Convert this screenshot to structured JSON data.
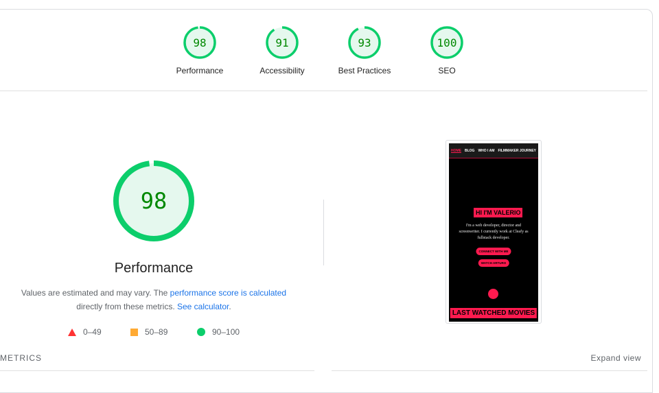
{
  "colors": {
    "pass": "#0cce6b",
    "pass_bg": "#e5f8ee",
    "pass_text": "#008800",
    "fail": "#ff3333",
    "average": "#ffaa33",
    "link": "#1a73e8"
  },
  "categories": [
    {
      "label": "Performance",
      "score": 98
    },
    {
      "label": "Accessibility",
      "score": 91
    },
    {
      "label": "Best Practices",
      "score": 93
    },
    {
      "label": "SEO",
      "score": 100
    }
  ],
  "main": {
    "score": 98,
    "title": "Performance",
    "desc_start": "Values are estimated and may vary. The ",
    "desc_link1": "performance score is calculated",
    "desc_mid": " directly from these metrics. ",
    "desc_link2": "See calculator",
    "desc_end": ".",
    "legend": [
      {
        "icon": "triangle-icon",
        "range": "0–49"
      },
      {
        "icon": "square-icon",
        "range": "50–89"
      },
      {
        "icon": "circle-icon",
        "range": "90–100"
      }
    ]
  },
  "metrics_label": "METRICS",
  "expand_label": "Expand view",
  "screenshot": {
    "nav": [
      "HOME",
      "BLOG",
      "WHO I AM",
      "FILMMAKER JOURNEY"
    ],
    "heading": "HI I'M VALERIO",
    "intro": "I'm a web developer, director and screenwriter. I currently work at Cleafy as fullstack developer.",
    "btn1": "CONNECT WITH ME",
    "btn2": "WATCH ARTURO",
    "section": "LAST WATCHED MOVIES"
  }
}
